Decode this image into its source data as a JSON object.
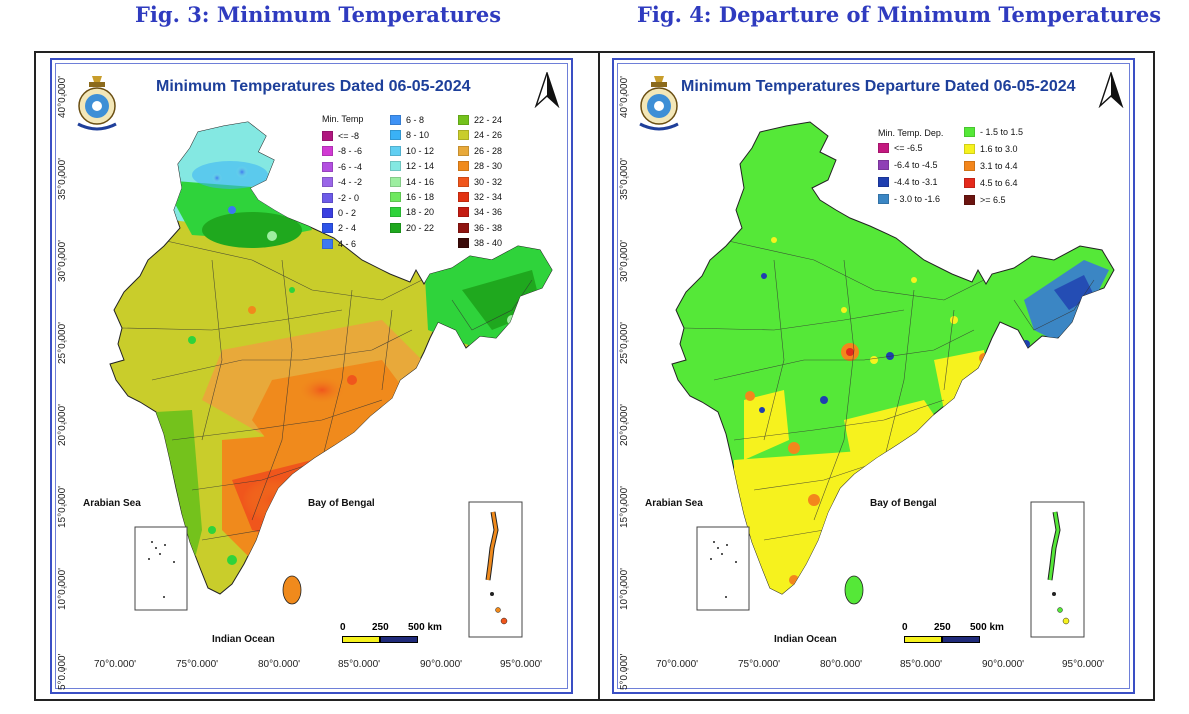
{
  "captions": {
    "left": "Fig. 3: Minimum Temperatures",
    "right": "Fig. 4: Departure of Minimum Temperatures"
  },
  "panels": {
    "left": {
      "title": "Minimum Temperatures  Dated 06-05-2024",
      "legend_title": "Min. Temp",
      "legend_items": [
        {
          "label": "<= -8",
          "color": "#b0177f"
        },
        {
          "label": "-8 - -6",
          "color": "#d13ad3"
        },
        {
          "label": "-6 - -4",
          "color": "#b34fe0"
        },
        {
          "label": "-4 - -2",
          "color": "#9a66e8"
        },
        {
          "label": "-2 - 0",
          "color": "#6d5be8"
        },
        {
          "label": "0 - 2",
          "color": "#3b3fe0"
        },
        {
          "label": "2 - 4",
          "color": "#2d53e8"
        },
        {
          "label": "4 - 6",
          "color": "#3c78f0"
        },
        {
          "label": "6 - 8",
          "color": "#3f92f5"
        },
        {
          "label": "8 - 10",
          "color": "#3ab1f5"
        },
        {
          "label": "10 - 12",
          "color": "#61cff2"
        },
        {
          "label": "12 - 14",
          "color": "#84e8e2"
        },
        {
          "label": "14 - 16",
          "color": "#9deea0"
        },
        {
          "label": "16 - 18",
          "color": "#6fe85f"
        },
        {
          "label": "18 - 20",
          "color": "#2fd33b"
        },
        {
          "label": "20 - 22",
          "color": "#1fa81e"
        },
        {
          "label": "22 - 24",
          "color": "#74c21c"
        },
        {
          "label": "24 - 26",
          "color": "#c9cd2b"
        },
        {
          "label": "26 - 28",
          "color": "#e8a93a"
        },
        {
          "label": "28 - 30",
          "color": "#f08a1c"
        },
        {
          "label": "30 - 32",
          "color": "#f0561c"
        },
        {
          "label": "32 - 34",
          "color": "#e23212"
        },
        {
          "label": "34 - 36",
          "color": "#c41c12"
        },
        {
          "label": "36 - 38",
          "color": "#8f1410"
        },
        {
          "label": "38 - 40",
          "color": "#3a0a08"
        }
      ]
    },
    "right": {
      "title": "Minimum Temperatures Departure Dated 06-05-2024",
      "legend_title": "Min. Temp. Dep.",
      "legend_items": [
        {
          "label": "<= -6.5",
          "color": "#c3187f"
        },
        {
          "label": "-6.4 to -4.5",
          "color": "#8f3fb6"
        },
        {
          "label": "-4.4 to -3.1",
          "color": "#1f3fb0"
        },
        {
          "label": "- 3.0 to -1.6",
          "color": "#3b86c4"
        },
        {
          "label": "- 1.5 to 1.5",
          "color": "#55e838"
        },
        {
          "label": "1.6 to  3.0",
          "color": "#f6f21e"
        },
        {
          "label": "3.1 to 4.4",
          "color": "#f3861c"
        },
        {
          "label": "4.5 to 6.4",
          "color": "#e42a1c"
        },
        {
          "label": ">= 6.5",
          "color": "#6b1410"
        }
      ]
    }
  },
  "axes": {
    "lat_labels": [
      "40°0.000'",
      "35°0.000'",
      "30°0.000'",
      "25°0.000'",
      "20°0.000'",
      "15°0.000'",
      "10°0.000'",
      "5°0.000'"
    ],
    "lon_labels": [
      "70°0.000'",
      "75°0.000'",
      "80°0.000'",
      "85°0.000'",
      "90°0.000'",
      "95°0.000'"
    ]
  },
  "places": {
    "arabian_sea": "Arabian Sea",
    "bay_of_bengal": "Bay of Bengal",
    "indian_ocean": "Indian Ocean"
  },
  "scale": {
    "ticks": [
      "0",
      "250",
      "500 km"
    ],
    "colors": [
      "#f6f21e",
      "#1f2a7a"
    ]
  },
  "colors": {
    "frame_border": "#3a4fc4",
    "caption": "#2f3bbf",
    "title": "#1d3f9a"
  }
}
